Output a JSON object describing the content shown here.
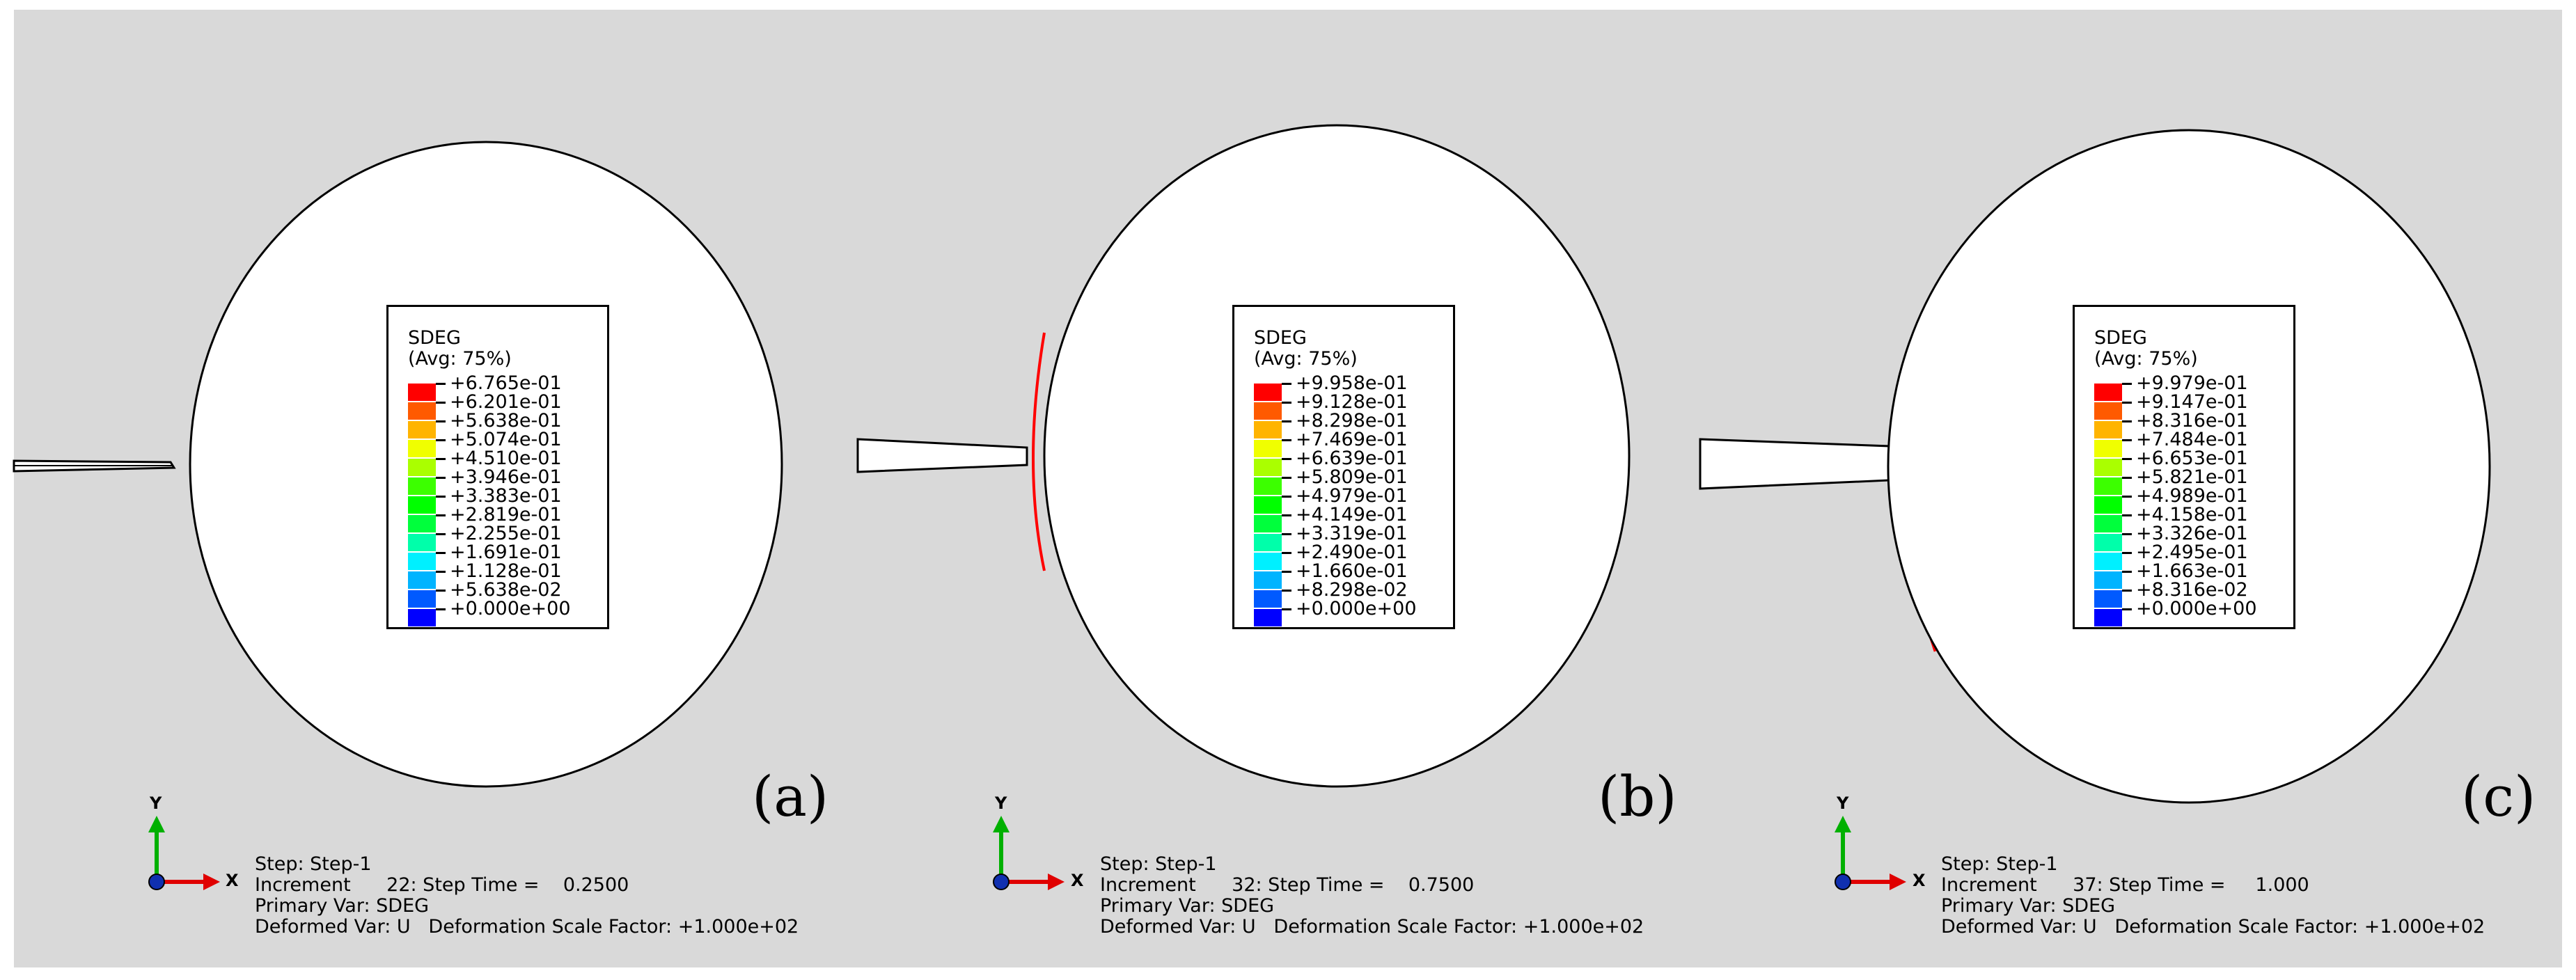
{
  "background_color": "#d9d9d9",
  "legend_colors": [
    "#ff0000",
    "#ff5a00",
    "#ffb400",
    "#f0ff00",
    "#aaff00",
    "#3cff00",
    "#00ff00",
    "#00ff3c",
    "#00ffaa",
    "#00f0ff",
    "#00b4ff",
    "#005aff",
    "#0000ff"
  ],
  "panels": [
    {
      "label": "(a)",
      "legend": {
        "var": "SDEG",
        "avg": "(Avg: 75%)",
        "values": [
          "+6.765e-01",
          "+6.201e-01",
          "+5.638e-01",
          "+5.074e-01",
          "+4.510e-01",
          "+3.946e-01",
          "+3.383e-01",
          "+2.819e-01",
          "+2.255e-01",
          "+1.691e-01",
          "+1.128e-01",
          "+5.638e-02",
          "+0.000e+00"
        ]
      },
      "triad": {
        "y": "Y",
        "x": "X"
      },
      "info": {
        "step": "Step: Step-1",
        "increment": "Increment      22: Step Time =    0.2500",
        "primary": "Primary Var: SDEG",
        "deformed": "Deformed Var: U   Deformation Scale Factor: +1.000e+02"
      }
    },
    {
      "label": "(b)",
      "legend": {
        "var": "SDEG",
        "avg": "(Avg: 75%)",
        "values": [
          "+9.958e-01",
          "+9.128e-01",
          "+8.298e-01",
          "+7.469e-01",
          "+6.639e-01",
          "+5.809e-01",
          "+4.979e-01",
          "+4.149e-01",
          "+3.319e-01",
          "+2.490e-01",
          "+1.660e-01",
          "+8.298e-02",
          "+0.000e+00"
        ]
      },
      "triad": {
        "y": "Y",
        "x": "X"
      },
      "info": {
        "step": "Step: Step-1",
        "increment": "Increment      32: Step Time =    0.7500",
        "primary": "Primary Var: SDEG",
        "deformed": "Deformed Var: U   Deformation Scale Factor: +1.000e+02"
      }
    },
    {
      "label": "(c)",
      "legend": {
        "var": "SDEG",
        "avg": "(Avg: 75%)",
        "values": [
          "+9.979e-01",
          "+9.147e-01",
          "+8.316e-01",
          "+7.484e-01",
          "+6.653e-01",
          "+5.821e-01",
          "+4.989e-01",
          "+4.158e-01",
          "+3.326e-01",
          "+2.495e-01",
          "+1.663e-01",
          "+8.316e-02",
          "+0.000e+00"
        ]
      },
      "triad": {
        "y": "Y",
        "x": "X"
      },
      "info": {
        "step": "Step: Step-1",
        "increment": "Increment      37: Step Time =     1.000",
        "primary": "Primary Var: SDEG",
        "deformed": "Deformed Var: U   Deformation Scale Factor: +1.000e+02"
      }
    }
  ]
}
